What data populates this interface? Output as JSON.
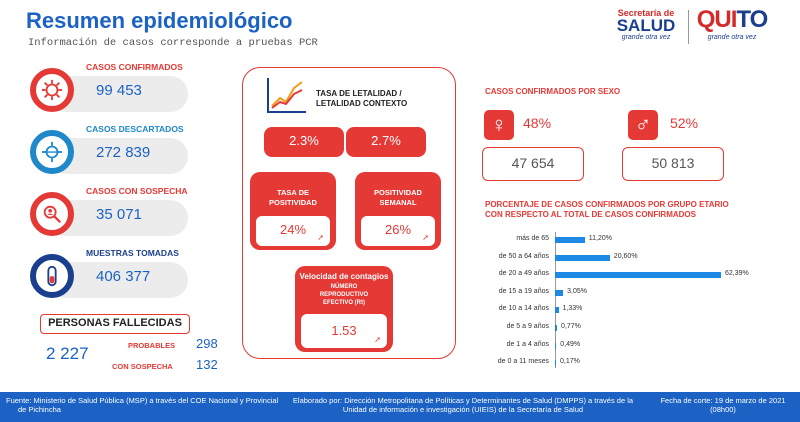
{
  "header": {
    "title": "Resumen epidemiológico",
    "subtitle": "Información de casos corresponde a pruebas PCR"
  },
  "logos": {
    "salud_line1": "Secretaría de",
    "salud_line2": "SALUD",
    "salud_tagline": "grande otra vez",
    "quito_a": "QUI",
    "quito_b": "TO",
    "quito_tagline": "grande otra vez"
  },
  "stats": {
    "confirmados": {
      "label": "CASOS CONFIRMADOS",
      "value": "99 453",
      "icon": "virus-icon"
    },
    "descartados": {
      "label": "CASOS DESCARTADOS",
      "value": "272 839",
      "icon": "virus-icon"
    },
    "sospecha": {
      "label": "CASOS CON SOSPECHA",
      "value": "35 071",
      "icon": "search-person-icon"
    },
    "muestras": {
      "label": "MUESTRAS TOMADAS",
      "value": "406 377",
      "icon": "test-tube-icon"
    }
  },
  "fallecidos": {
    "title": "PERSONAS FALLECIDAS",
    "total": "2 227",
    "probables_label": "PROBABLES",
    "probables_value": "298",
    "sospecha_label": "CON SOSPECHA",
    "sospecha_value": "132"
  },
  "letalidad": {
    "title_line1": "TASA DE LETALIDAD /",
    "title_line2": "LETALIDAD CONTEXTO",
    "tasa": "2.3%",
    "contexto": "2.7%",
    "positividad_label1": "TASA DE",
    "positividad_label2": "POSITIVIDAD",
    "positividad_value": "24%",
    "semanal_label1": "POSITIVIDAD",
    "semanal_label2": "SEMANAL",
    "semanal_value": "26%",
    "contagio_title": "Velocidad de contagios",
    "contagio_sub1": "NÚMERO",
    "contagio_sub2": "REPRODUCTIVO",
    "contagio_sub3": "EFECTIVO (Rt)",
    "contagio_value": "1.53"
  },
  "sexo": {
    "title": "CASOS CONFIRMADOS POR SEXO",
    "mujer_pct": "48%",
    "mujer_count": "47 654",
    "hombre_pct": "52%",
    "hombre_count": "50 813"
  },
  "chart_data": {
    "type": "bar",
    "title_line1": "PORCENTAJE DE CASOS CONFIRMADOS POR GRUPO ETARIO",
    "title_line2": "CON RESPECTO AL TOTAL DE CASOS CONFIRMADOS",
    "orientation": "horizontal",
    "categories": [
      "más de 65",
      "de 50 a 64 años",
      "de 20 a 49 años",
      "de 15 a 19 años",
      "de 10 a 14 años",
      "de 5 a 9 años",
      "de 1 a 4 años",
      "de 0 a 11 meses"
    ],
    "values": [
      11.2,
      20.6,
      62.39,
      3.05,
      1.33,
      0.77,
      0.49,
      0.17
    ],
    "value_labels": [
      "11,20%",
      "20,60%",
      "62,39%",
      "3,05%",
      "1,33%",
      "0,77%",
      "0,49%",
      "0,17%"
    ],
    "bar_color": "#1e88e5"
  },
  "footer": {
    "fuente_line1": "Fuente: Ministerio de Salud Pública (MSP) a través del COE Nacional y Provincial",
    "fuente_line2": "de Pichincha",
    "elaborado_line1": "Elaborado por: Dirección Metropolitana de Políticas y Determinantes de Salud (DMPPS) a través de la",
    "elaborado_line2": "Unidad de información e investigación (UIEIS) de la Secretaría de Salud",
    "fecha_line1": "Fecha de corte: 19 de marzo de 2021",
    "fecha_line2": "(08h00)"
  }
}
